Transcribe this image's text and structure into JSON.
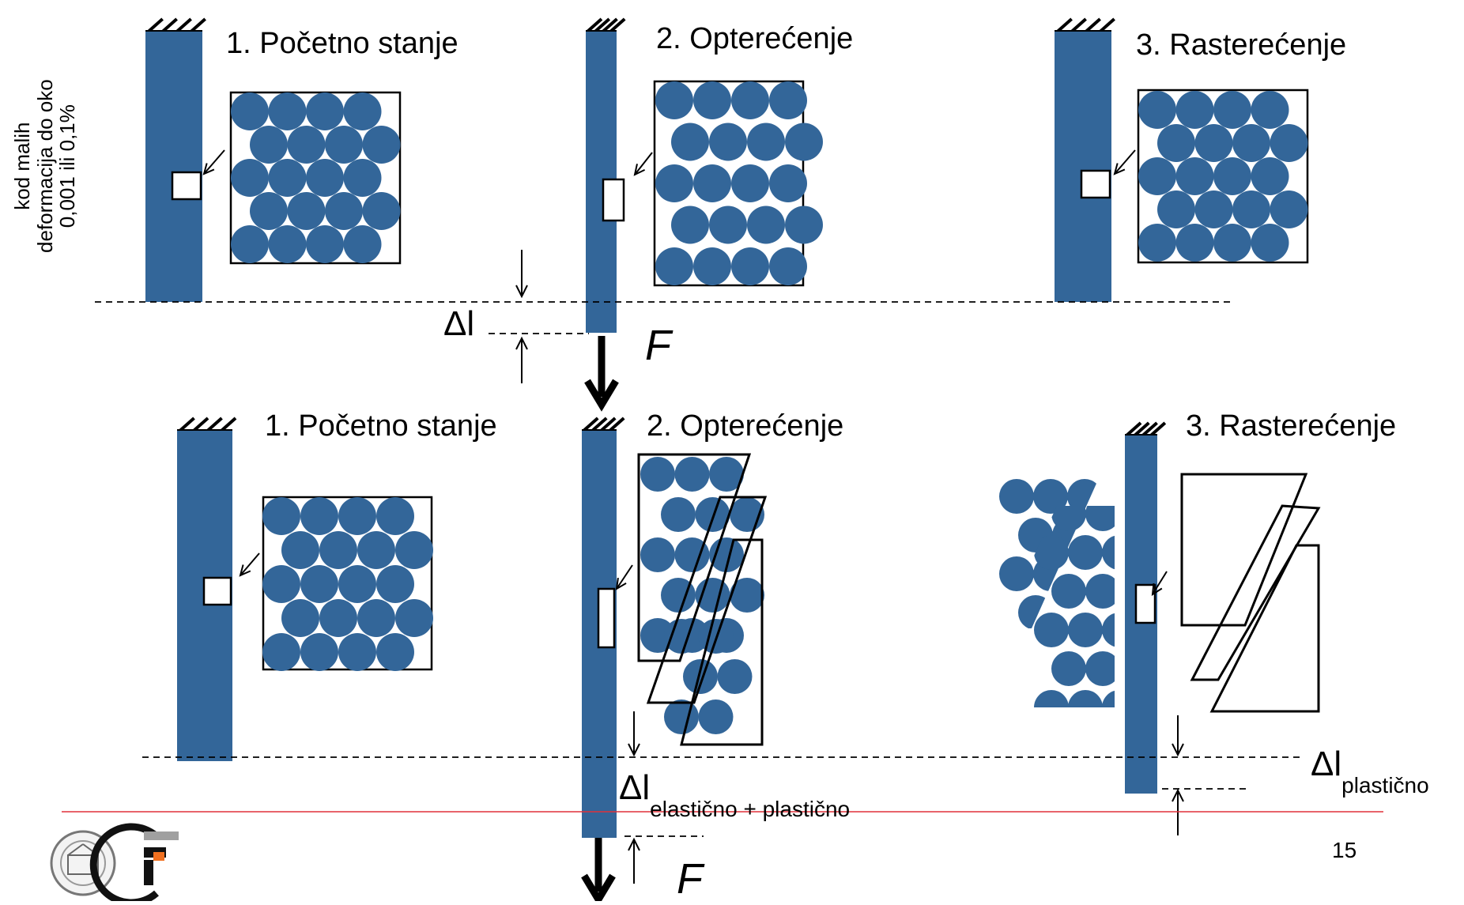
{
  "colors": {
    "bar": "#336699",
    "atom": "#336699",
    "red_line": "#e0303a",
    "orange": "#f07020",
    "gray": "#a0a0a0"
  },
  "elastic_row": {
    "side_note": [
      "kod malih",
      "deformacija do oko",
      "0,001 ili 0,1%"
    ],
    "stage1_title": "1. Početno stanje",
    "stage2_title": "2. Opterećenje",
    "stage3_title": "3. Rasterećenje",
    "delta_l": "Δl",
    "force": "F"
  },
  "plastic_row": {
    "stage1_title": "1. Početno stanje",
    "stage2_title": "2. Opterećenje",
    "stage3_title": "3. Rasterećenje",
    "delta_l_main": "Δl",
    "delta_l_elastic_sub": "elastično + plastično",
    "delta_l_plastic_main": "Δl",
    "delta_l_plastic_sub": "plastično",
    "force": "F"
  },
  "footer": {
    "page_number": "15",
    "logo_icons": [
      "university-seal-icon",
      "gf-faculty-logo-icon"
    ]
  }
}
